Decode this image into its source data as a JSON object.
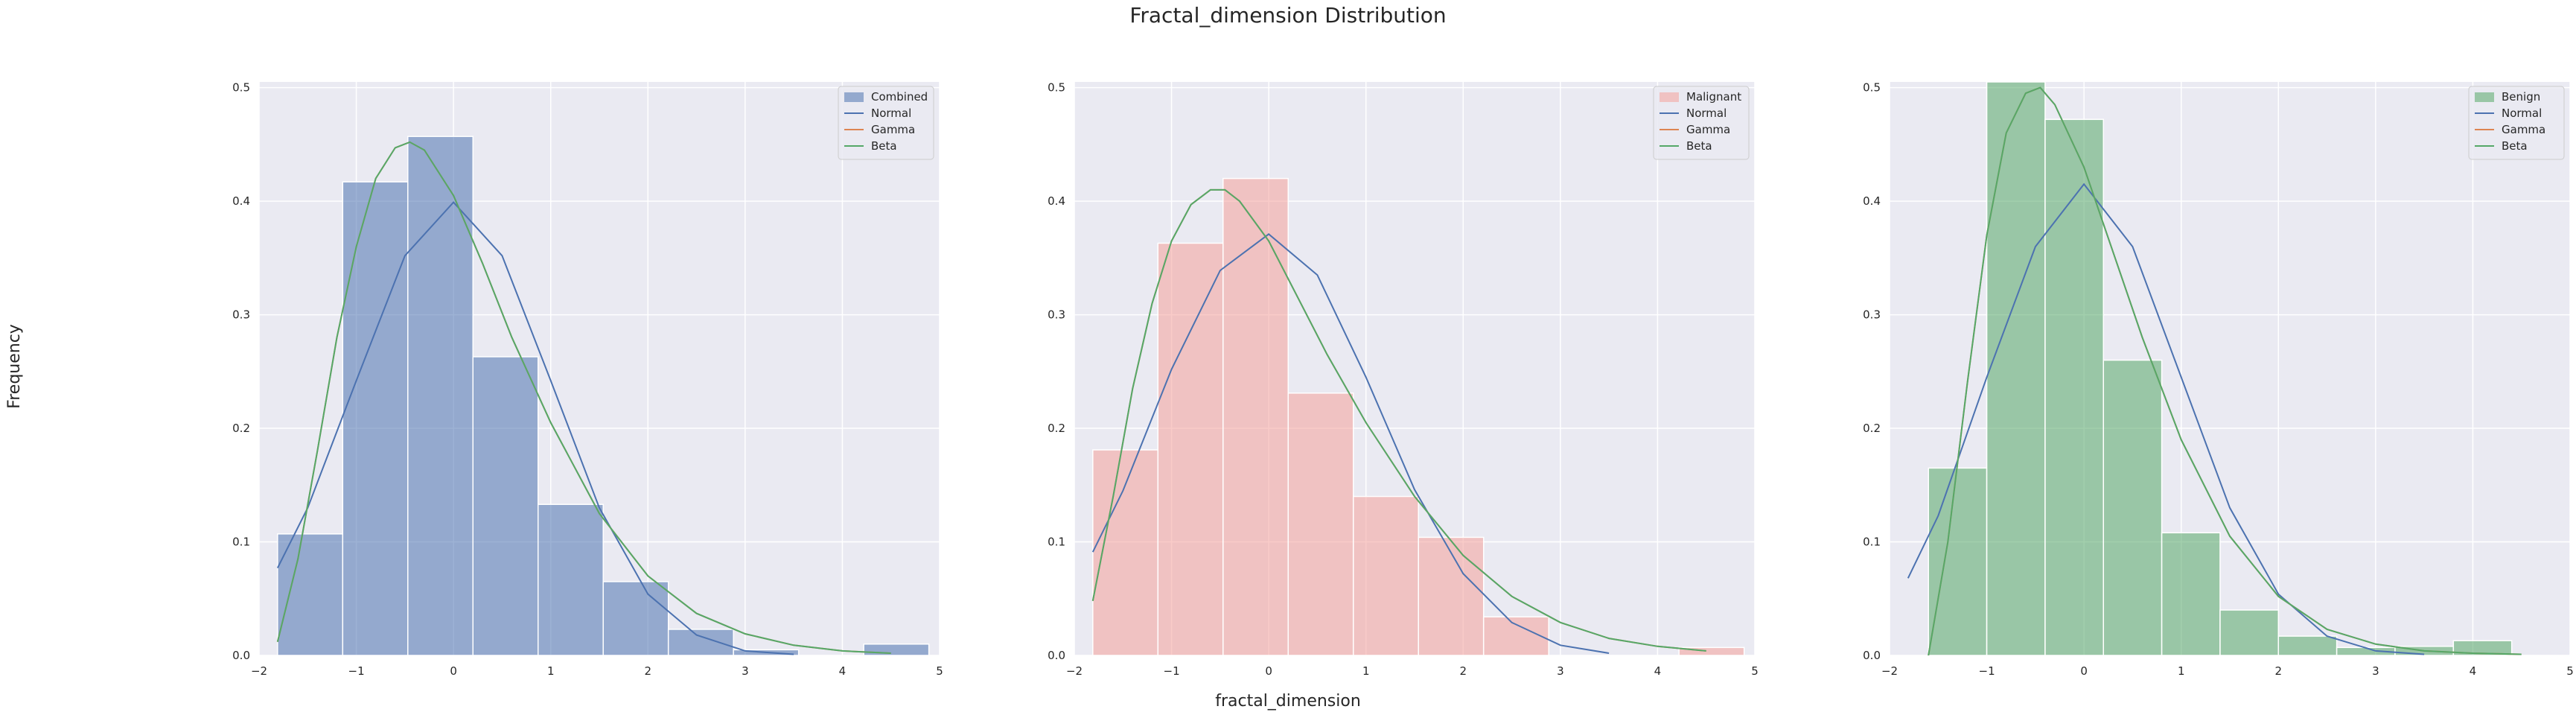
{
  "figure": {
    "title": "Fractal_dimension Distribution",
    "xlabel": "fractal_dimension",
    "ylabel": "Frequency"
  },
  "colors": {
    "background": "#eaeaf2",
    "grid": "#ffffff",
    "normal": "#4c72b0",
    "gamma": "#dd8452",
    "beta": "#55a868"
  },
  "chart_data": [
    {
      "type": "bar",
      "hist_label": "Combined",
      "hist_color": "#4c72b0",
      "bin_edges": [
        -1.81,
        -1.14,
        -0.47,
        0.2,
        0.87,
        1.54,
        2.21,
        2.88,
        3.55,
        4.22,
        4.89
      ],
      "values": [
        0.107,
        0.417,
        0.457,
        0.263,
        0.133,
        0.065,
        0.023,
        0.005,
        0.0,
        0.01
      ],
      "xlim": [
        -2.0,
        5.0
      ],
      "ylim": [
        0,
        0.505
      ],
      "xticks": [
        -2,
        -1,
        0,
        1,
        2,
        3,
        4,
        5
      ],
      "yticks": [
        0.0,
        0.1,
        0.2,
        0.3,
        0.4,
        0.5
      ],
      "ytick_labels": [
        "0.0",
        "0.1",
        "0.2",
        "0.3",
        "0.4",
        "0.5"
      ],
      "legend": [
        "Combined",
        "Normal",
        "Gamma",
        "Beta"
      ],
      "legend_position": "top-right",
      "grid": true,
      "series": [
        {
          "name": "Normal",
          "x": [
            -1.81,
            -1.5,
            -1.0,
            -0.5,
            0.0,
            0.5,
            1.0,
            1.5,
            2.0,
            2.5,
            3.0,
            3.5
          ],
          "y": [
            0.077,
            0.13,
            0.242,
            0.352,
            0.399,
            0.352,
            0.242,
            0.13,
            0.054,
            0.018,
            0.004,
            0.001
          ]
        },
        {
          "name": "Gamma",
          "x": [
            -1.81,
            -1.6,
            -1.4,
            -1.2,
            -1.0,
            -0.8,
            -0.6,
            -0.45,
            -0.3,
            0.0,
            0.3,
            0.6,
            1.0,
            1.5,
            2.0,
            2.5,
            3.0,
            3.5,
            4.0,
            4.5
          ],
          "y": [
            0.012,
            0.085,
            0.18,
            0.28,
            0.36,
            0.42,
            0.447,
            0.452,
            0.445,
            0.405,
            0.345,
            0.28,
            0.205,
            0.125,
            0.07,
            0.037,
            0.019,
            0.009,
            0.004,
            0.002
          ]
        },
        {
          "name": "Beta",
          "x": [
            -1.81,
            -1.6,
            -1.4,
            -1.2,
            -1.0,
            -0.8,
            -0.6,
            -0.45,
            -0.3,
            0.0,
            0.3,
            0.6,
            1.0,
            1.5,
            2.0,
            2.5,
            3.0,
            3.5,
            4.0,
            4.5
          ],
          "y": [
            0.012,
            0.085,
            0.18,
            0.28,
            0.36,
            0.42,
            0.447,
            0.452,
            0.445,
            0.405,
            0.345,
            0.28,
            0.205,
            0.125,
            0.07,
            0.037,
            0.019,
            0.009,
            0.004,
            0.002
          ]
        }
      ]
    },
    {
      "type": "bar",
      "hist_label": "Malignant",
      "hist_color": "#f4a09b",
      "bin_edges": [
        -1.81,
        -1.14,
        -0.47,
        0.2,
        0.87,
        1.54,
        2.21,
        2.88,
        3.55,
        4.22,
        4.89
      ],
      "values": [
        0.181,
        0.363,
        0.42,
        0.231,
        0.14,
        0.104,
        0.034,
        0.0,
        0.0,
        0.007
      ],
      "xlim": [
        -2.0,
        5.0
      ],
      "ylim": [
        0,
        0.505
      ],
      "xticks": [
        -2,
        -1,
        0,
        1,
        2,
        3,
        4,
        5
      ],
      "yticks": [
        0.0,
        0.1,
        0.2,
        0.3,
        0.4,
        0.5
      ],
      "ytick_labels": [
        "0.0",
        "0.1",
        "0.2",
        "0.3",
        "0.4",
        "0.5"
      ],
      "legend": [
        "Malignant",
        "Normal",
        "Gamma",
        "Beta"
      ],
      "legend_position": "top-right",
      "grid": true,
      "series": [
        {
          "name": "Normal",
          "x": [
            -1.81,
            -1.5,
            -1.0,
            -0.5,
            0.0,
            0.5,
            1.0,
            1.5,
            2.0,
            2.5,
            3.0,
            3.5
          ],
          "y": [
            0.091,
            0.145,
            0.252,
            0.339,
            0.371,
            0.335,
            0.245,
            0.146,
            0.072,
            0.029,
            0.009,
            0.002
          ]
        },
        {
          "name": "Gamma",
          "x": [
            -1.81,
            -1.6,
            -1.4,
            -1.2,
            -1.0,
            -0.8,
            -0.6,
            -0.45,
            -0.3,
            0.0,
            0.3,
            0.6,
            1.0,
            1.5,
            2.0,
            2.5,
            3.0,
            3.5,
            4.0,
            4.5
          ],
          "y": [
            0.048,
            0.14,
            0.235,
            0.31,
            0.365,
            0.397,
            0.41,
            0.41,
            0.4,
            0.365,
            0.315,
            0.265,
            0.205,
            0.14,
            0.088,
            0.052,
            0.029,
            0.015,
            0.008,
            0.004
          ]
        },
        {
          "name": "Beta",
          "x": [
            -1.81,
            -1.6,
            -1.4,
            -1.2,
            -1.0,
            -0.8,
            -0.6,
            -0.45,
            -0.3,
            0.0,
            0.3,
            0.6,
            1.0,
            1.5,
            2.0,
            2.5,
            3.0,
            3.5,
            4.0,
            4.5
          ],
          "y": [
            0.048,
            0.14,
            0.235,
            0.31,
            0.365,
            0.397,
            0.41,
            0.41,
            0.4,
            0.365,
            0.315,
            0.265,
            0.205,
            0.14,
            0.088,
            0.052,
            0.029,
            0.015,
            0.008,
            0.004
          ]
        }
      ]
    },
    {
      "type": "bar",
      "hist_label": "Benign",
      "hist_color": "#55a868",
      "bin_edges": [
        -1.6,
        -1.0,
        -0.4,
        0.2,
        0.8,
        1.4,
        2.0,
        2.6,
        3.2,
        3.8,
        4.4
      ],
      "values": [
        0.165,
        0.51,
        0.472,
        0.26,
        0.108,
        0.04,
        0.017,
        0.007,
        0.008,
        0.013
      ],
      "xlim": [
        -2.0,
        5.0
      ],
      "ylim": [
        0,
        0.505
      ],
      "xticks": [
        -2,
        -1,
        0,
        1,
        2,
        3,
        4,
        5
      ],
      "yticks": [
        0.0,
        0.1,
        0.2,
        0.3,
        0.4,
        0.5
      ],
      "ytick_labels": [
        "0.0",
        "0.1",
        "0.2",
        "0.3",
        "0.4",
        "0.5"
      ],
      "legend": [
        "Benign",
        "Normal",
        "Gamma",
        "Beta"
      ],
      "legend_position": "top-right",
      "grid": true,
      "series": [
        {
          "name": "Normal",
          "x": [
            -1.81,
            -1.5,
            -1.0,
            -0.5,
            0.0,
            0.5,
            1.0,
            1.5,
            2.0,
            2.5,
            3.0,
            3.5
          ],
          "y": [
            0.068,
            0.123,
            0.245,
            0.36,
            0.415,
            0.36,
            0.245,
            0.13,
            0.054,
            0.017,
            0.004,
            0.001
          ]
        },
        {
          "name": "Gamma",
          "x": [
            -1.6,
            -1.4,
            -1.2,
            -1.0,
            -0.8,
            -0.6,
            -0.45,
            -0.3,
            0.0,
            0.3,
            0.6,
            1.0,
            1.5,
            2.0,
            2.5,
            3.0,
            3.5,
            4.0,
            4.5
          ],
          "y": [
            0.0,
            0.1,
            0.24,
            0.37,
            0.46,
            0.495,
            0.5,
            0.485,
            0.43,
            0.355,
            0.28,
            0.19,
            0.105,
            0.052,
            0.023,
            0.01,
            0.004,
            0.002,
            0.001
          ]
        },
        {
          "name": "Beta",
          "x": [
            -1.6,
            -1.4,
            -1.2,
            -1.0,
            -0.8,
            -0.6,
            -0.45,
            -0.3,
            0.0,
            0.3,
            0.6,
            1.0,
            1.5,
            2.0,
            2.5,
            3.0,
            3.5,
            4.0,
            4.5
          ],
          "y": [
            0.0,
            0.1,
            0.24,
            0.37,
            0.46,
            0.495,
            0.5,
            0.485,
            0.43,
            0.355,
            0.28,
            0.19,
            0.105,
            0.052,
            0.023,
            0.01,
            0.004,
            0.002,
            0.001
          ]
        }
      ]
    }
  ]
}
